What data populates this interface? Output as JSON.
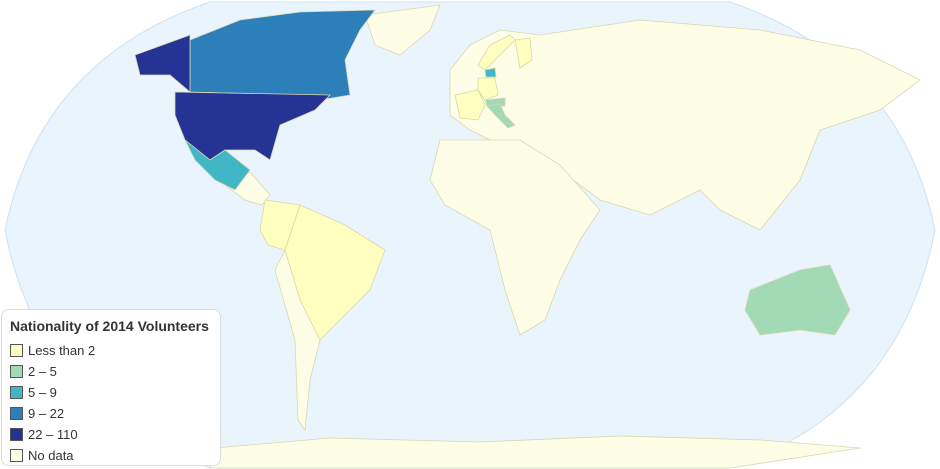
{
  "legend": {
    "title": "Nationality of 2014 Volunteers",
    "items": [
      {
        "label": "Less than 2",
        "color": "#ffffbf"
      },
      {
        "label": "2 – 5",
        "color": "#a1dab4"
      },
      {
        "label": "5 – 9",
        "color": "#41b6c4"
      },
      {
        "label": "9 – 22",
        "color": "#2c7fb8"
      },
      {
        "label": "22 – 110",
        "color": "#253494"
      },
      {
        "label": "No data",
        "color": "#fefee6"
      }
    ]
  },
  "map": {
    "ocean_color": "#eaf4fc",
    "countries": [
      {
        "name": "United States",
        "bin": "22 – 110"
      },
      {
        "name": "Canada",
        "bin": "9 – 22"
      },
      {
        "name": "Mexico",
        "bin": "5 – 9"
      },
      {
        "name": "Denmark",
        "bin": "5 – 9"
      },
      {
        "name": "Italy",
        "bin": "2 – 5"
      },
      {
        "name": "Austria",
        "bin": "2 – 5"
      },
      {
        "name": "Australia",
        "bin": "2 – 5"
      },
      {
        "name": "Brazil",
        "bin": "Less than 2"
      },
      {
        "name": "Colombia",
        "bin": "Less than 2"
      },
      {
        "name": "Germany",
        "bin": "Less than 2"
      },
      {
        "name": "France",
        "bin": "Less than 2"
      },
      {
        "name": "Norway",
        "bin": "Less than 2"
      },
      {
        "name": "Finland",
        "bin": "Less than 2"
      }
    ]
  }
}
